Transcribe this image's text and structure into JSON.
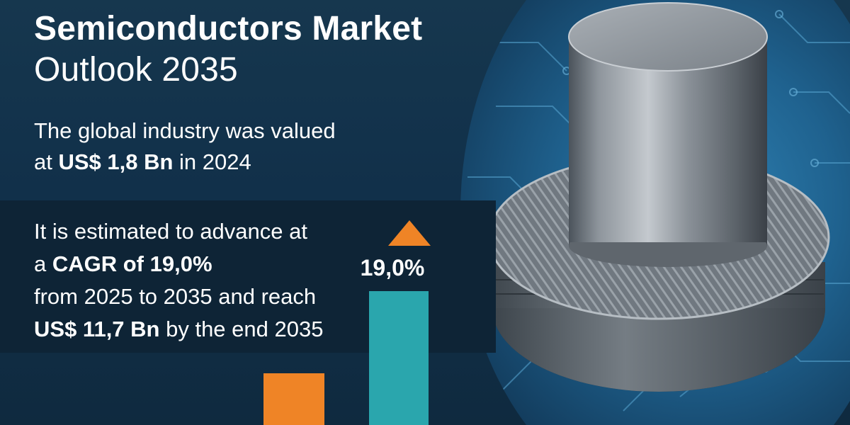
{
  "headline": {
    "line1": "Semiconductors Market",
    "line2": "Outlook 2035"
  },
  "valuation": {
    "line1": "The global industry was valued",
    "line2_pre": "at ",
    "line2_value": "US$ 1,8 Bn",
    "line2_post": " in 2024"
  },
  "forecast": {
    "line1": "It is estimated to advance at",
    "line2_pre": "a ",
    "line2_value": "CAGR of 19,0%",
    "line3": "from 2025 to 2035 and reach",
    "line4_value": "US$ 11,7 Bn",
    "line4_post": " by the end 2035"
  },
  "growth_graphic": {
    "label": "19,0%",
    "bar_2024_value_bn": 1.8,
    "bar_2035_value_bn": 11.7
  },
  "colors": {
    "background": "#11304a",
    "accent_orange": "#ef8426",
    "accent_teal": "#2aa6ad",
    "text": "#ffffff"
  },
  "icons": {
    "arrow": "up-triangle-arrow-icon"
  }
}
